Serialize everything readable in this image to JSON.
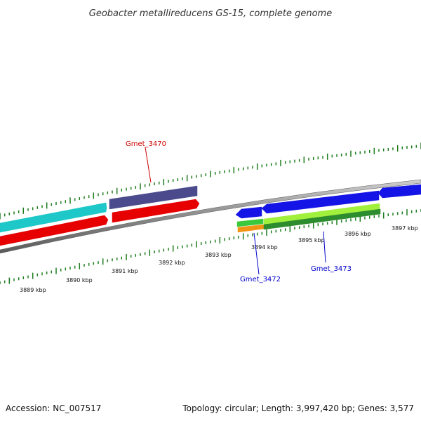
{
  "title": "Geobacter metallireducens GS-15, complete genome",
  "footer": {
    "accession": "Accession: NC_007517",
    "stats": "Topology: circular; Length: 3,997,420 bp; Genes: 3,577"
  },
  "colors": {
    "backbone": "#7d7d7d",
    "tick": "#1e7d1e",
    "label_red": "#cc0000",
    "label_blue": "#0000cc"
  },
  "axis": {
    "unit": "kbp",
    "upper_labels": [
      "3897 kbp"
    ],
    "lower_labels": [
      "3889 kbp",
      "3890 kbp",
      "3891 kbp",
      "3892 kbp",
      "3893 kbp",
      "3894 kbp",
      "3895 kbp",
      "3896 kbp"
    ]
  },
  "features": [
    {
      "id": "cyan-forward-gene",
      "color": "#1ec8c8",
      "strand": "+"
    },
    {
      "id": "red-reverse-gene",
      "color": "#e60000",
      "strand": "-"
    },
    {
      "id": "purple-forward-gene",
      "color": "#4a4a8c",
      "strand": "+"
    },
    {
      "id": "red-forward-gene",
      "color": "#e60000",
      "strand": "+"
    },
    {
      "id": "blue-small-gene",
      "color": "#1414e6",
      "strand": "-"
    },
    {
      "id": "blue-large-gene",
      "color": "#1414e6",
      "strand": "-"
    },
    {
      "id": "blue-right-gene",
      "color": "#1414e6",
      "strand": "-"
    },
    {
      "id": "green-small-gene",
      "color": "#3cc83c",
      "strand": "+"
    },
    {
      "id": "orange-small-gene",
      "color": "#f09614",
      "strand": "+"
    },
    {
      "id": "lime-large-gene",
      "color": "#a0f03c",
      "strand": "+"
    },
    {
      "id": "darkgreen-large-gene",
      "color": "#2d8c2d",
      "strand": "+"
    }
  ],
  "gene_labels": [
    {
      "text": "Gmet_3470",
      "color": "#cc0000"
    },
    {
      "text": "Gmet_3472",
      "color": "#0000cc"
    },
    {
      "text": "Gmet_3473",
      "color": "#0000cc"
    }
  ]
}
